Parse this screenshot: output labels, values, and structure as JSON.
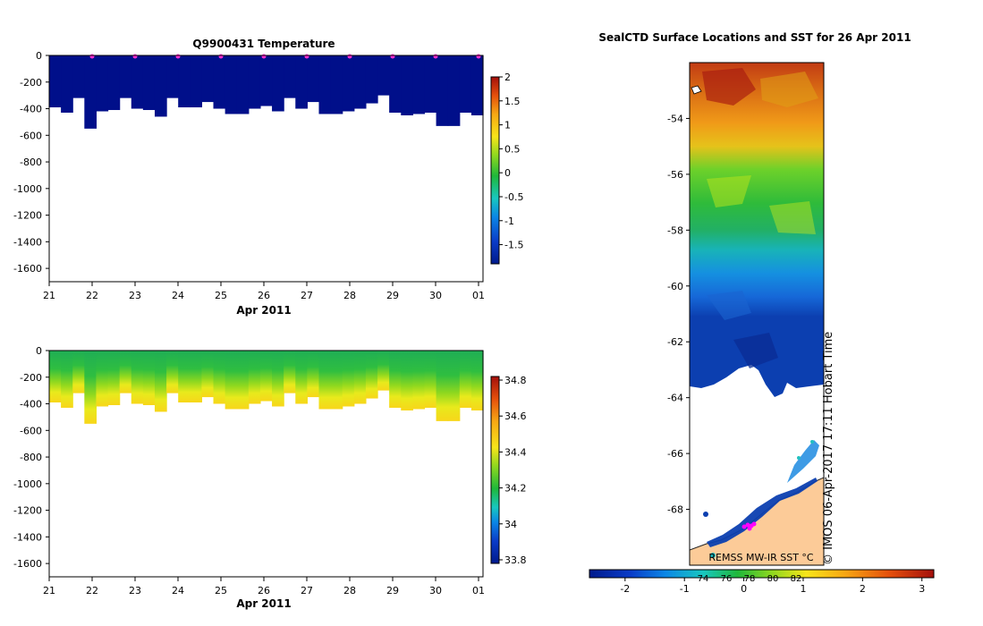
{
  "chart_data": [
    {
      "type": "heatmap",
      "title": "Q9900431  Temperature",
      "xlabel": "Apr 2011",
      "x_ticks": [
        "21",
        "22",
        "23",
        "24",
        "25",
        "26",
        "27",
        "28",
        "29",
        "30",
        "01"
      ],
      "y_ticks": [
        "0",
        "-200",
        "-400",
        "-600",
        "-800",
        "-1000",
        "-1200",
        "-1400",
        "-1600"
      ],
      "ylim": [
        -1700,
        0
      ],
      "profile_bottom_depths": [
        -390,
        -430,
        -320,
        -550,
        -420,
        -410,
        -320,
        -400,
        -410,
        -460,
        -320,
        -390,
        -390,
        -350,
        -400,
        -440,
        -440,
        -400,
        -380,
        -420,
        -320,
        -400,
        -350,
        -440,
        -440,
        -420,
        -400,
        -360,
        -300,
        -430,
        -450,
        -440,
        -430,
        -530,
        -530,
        -430,
        -450
      ],
      "surface_markers": [
        "22",
        "23",
        "24",
        "25",
        "26",
        "27",
        "28",
        "29",
        "30",
        "01"
      ],
      "value_note": "Temperature roughly -1.8 °C throughout",
      "colorbar": {
        "ticks": [
          "2",
          "1.5",
          "1",
          "0.5",
          "0",
          "-0.5",
          "-1",
          "-1.5"
        ],
        "range": [
          -1.9,
          2
        ]
      }
    },
    {
      "type": "heatmap",
      "title": "",
      "xlabel": "Apr 2011",
      "x_ticks": [
        "21",
        "22",
        "23",
        "24",
        "25",
        "26",
        "27",
        "28",
        "29",
        "30",
        "01"
      ],
      "y_ticks": [
        "0",
        "-200",
        "-400",
        "-600",
        "-800",
        "-1000",
        "-1200",
        "-1400",
        "-1600"
      ],
      "ylim": [
        -1700,
        0
      ],
      "value_note": "Salinity ~34.2 near surface grading to ~34.6 at depth",
      "colorbar": {
        "ticks": [
          "34.8",
          "34.6",
          "34.4",
          "34.2",
          "34",
          "33.8"
        ],
        "range": [
          33.78,
          34.82
        ]
      }
    },
    {
      "type": "heatmap",
      "title": "SealCTD Surface Locations and SST for 26 Apr 2011",
      "y_ticks": [
        "-54",
        "-56",
        "-58",
        "-60",
        "-62",
        "-64",
        "-66",
        "-68"
      ],
      "ylim": [
        -70,
        -52
      ],
      "source_label": "REMSS MW-IR SST °C",
      "credit": "© IMOS 06-Apr-2017 17:11 Hobart Time",
      "colorbar": {
        "ticks": [
          "-2",
          "-1",
          "0",
          "1",
          "2",
          "3"
        ],
        "inner_ticks": [
          "74",
          "76",
          "78",
          "80",
          "82"
        ],
        "range": [
          -2.6,
          3.2
        ]
      }
    }
  ]
}
